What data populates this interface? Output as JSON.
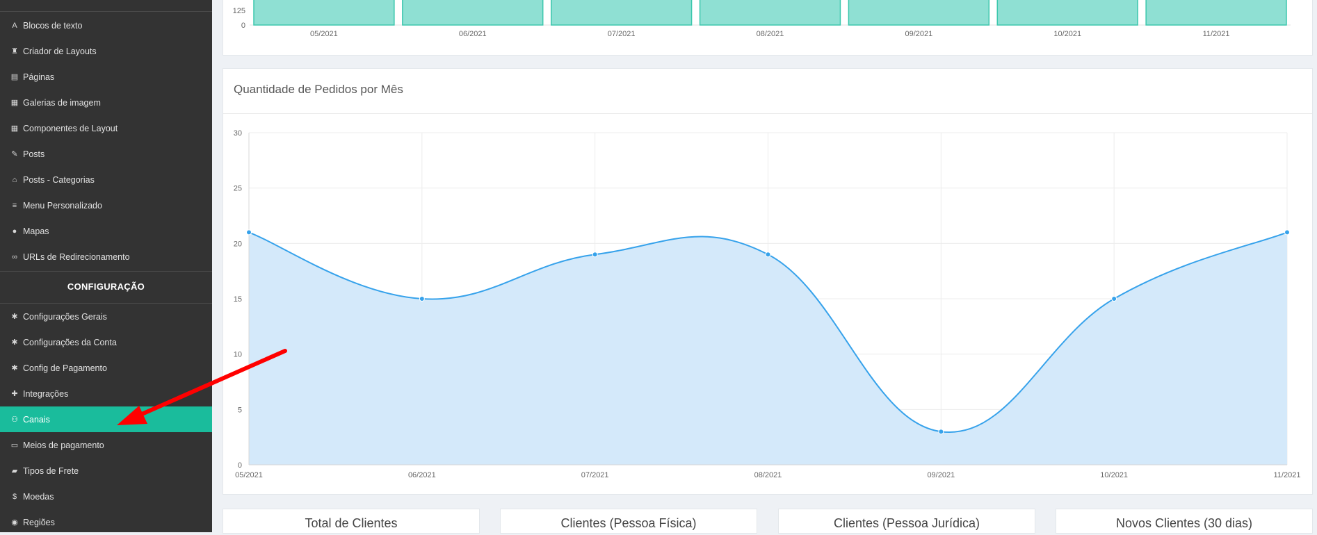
{
  "sidebar": {
    "items": [
      {
        "label": "Blocos de texto",
        "icon": "font-icon",
        "glyph": "A"
      },
      {
        "label": "Criador de Layouts",
        "icon": "chess-rook-icon",
        "glyph": "♜"
      },
      {
        "label": "Páginas",
        "icon": "file-icon",
        "glyph": "▤"
      },
      {
        "label": "Galerias de imagem",
        "icon": "film-icon",
        "glyph": "▦"
      },
      {
        "label": "Componentes de Layout",
        "icon": "th-large-icon",
        "glyph": "▦"
      },
      {
        "label": "Posts",
        "icon": "thumbtack-icon",
        "glyph": "✎"
      },
      {
        "label": "Posts - Categorias",
        "icon": "home-icon",
        "glyph": "⌂"
      },
      {
        "label": "Menu Personalizado",
        "icon": "list-icon",
        "glyph": "≡"
      },
      {
        "label": "Mapas",
        "icon": "map-marker-icon",
        "glyph": "●"
      },
      {
        "label": "URLs de Redirecionamento",
        "icon": "link-icon",
        "glyph": "∞"
      }
    ],
    "section_title": "CONFIGURAÇÃO",
    "config_items": [
      {
        "label": "Configurações Gerais",
        "icon": "gear-icon",
        "glyph": "✱"
      },
      {
        "label": "Configurações da Conta",
        "icon": "gear-icon",
        "glyph": "✱"
      },
      {
        "label": "Config de Pagamento",
        "icon": "gear-icon",
        "glyph": "✱"
      },
      {
        "label": "Integrações",
        "icon": "puzzle-icon",
        "glyph": "✚"
      },
      {
        "label": "Canais",
        "icon": "sitemap-icon",
        "glyph": "⚇",
        "active": true
      },
      {
        "label": "Meios de pagamento",
        "icon": "credit-card-icon",
        "glyph": "▭"
      },
      {
        "label": "Tipos de Frete",
        "icon": "truck-icon",
        "glyph": "▰"
      },
      {
        "label": "Moedas",
        "icon": "dollar-icon",
        "glyph": "$"
      },
      {
        "label": "Regiões",
        "icon": "globe-icon",
        "glyph": "◉"
      }
    ]
  },
  "top_chart": {
    "chart_data": {
      "type": "bar",
      "categories": [
        "05/2021",
        "06/2021",
        "07/2021",
        "08/2021",
        "09/2021",
        "10/2021",
        "11/2021"
      ],
      "visible_ticks": [
        "125",
        "0"
      ],
      "bar_color": "#8fe0d3",
      "bar_border": "#3cc7ad"
    }
  },
  "orders_chart": {
    "title": "Quantidade de Pedidos por Mês",
    "chart_data": {
      "type": "area",
      "x": [
        "05/2021",
        "06/2021",
        "07/2021",
        "08/2021",
        "09/2021",
        "10/2021",
        "11/2021"
      ],
      "y": [
        21,
        15,
        19,
        19,
        3,
        15,
        21
      ],
      "ylim": [
        0,
        30
      ],
      "yticks": [
        "30",
        "25",
        "20",
        "15",
        "10",
        "5",
        "0"
      ],
      "grid": true,
      "line_color": "#36a2eb",
      "fill_color": "#d4e9fa"
    }
  },
  "stat_cards": [
    {
      "title": "Total de Clientes"
    },
    {
      "title": "Clientes (Pessoa Física)"
    },
    {
      "title": "Clientes (Pessoa Jurídica)"
    },
    {
      "title": "Novos Clientes (30 dias)"
    }
  ],
  "colors": {
    "accent": "#1abc9c",
    "sidebar_bg": "#333333",
    "annotation_arrow": "#ff0000"
  }
}
